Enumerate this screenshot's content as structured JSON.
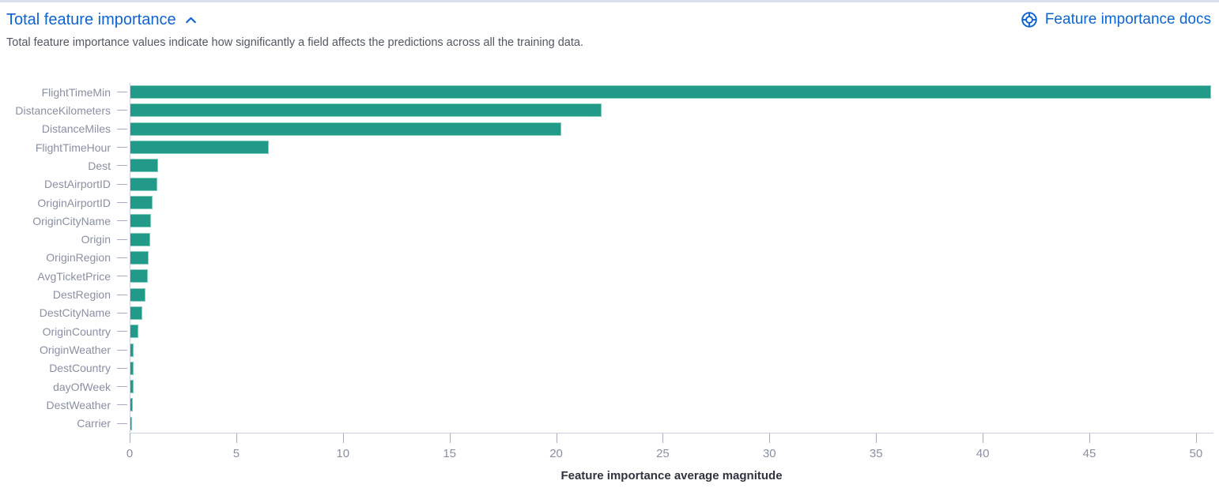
{
  "header": {
    "title": "Total feature importance",
    "docs_link_label": "Feature importance docs",
    "description": "Total feature importance values indicate how significantly a field affects the predictions across all the training data.",
    "link_color": "#0d64d2"
  },
  "chart_data": {
    "type": "bar",
    "orientation": "horizontal",
    "title": "",
    "xlabel": "Feature importance average magnitude",
    "ylabel": "",
    "categories": [
      "FlightTimeMin",
      "DistanceKilometers",
      "DistanceMiles",
      "FlightTimeHour",
      "Dest",
      "DestAirportID",
      "OriginAirportID",
      "OriginCityName",
      "Origin",
      "OriginRegion",
      "AvgTicketPrice",
      "DestRegion",
      "DestCityName",
      "OriginCountry",
      "OriginWeather",
      "DestCountry",
      "dayOfWeek",
      "DestWeather",
      "Carrier"
    ],
    "values": [
      50.7,
      22.1,
      20.2,
      6.5,
      1.3,
      1.26,
      1.05,
      0.96,
      0.94,
      0.87,
      0.81,
      0.69,
      0.56,
      0.37,
      0.16,
      0.15,
      0.15,
      0.11,
      0.05
    ],
    "xlim": [
      0,
      50.82
    ],
    "xticks": [
      0,
      5,
      10,
      15,
      20,
      25,
      30,
      35,
      40,
      45,
      50
    ],
    "grid": false,
    "legend": false,
    "bar_color": "#219a8a"
  }
}
